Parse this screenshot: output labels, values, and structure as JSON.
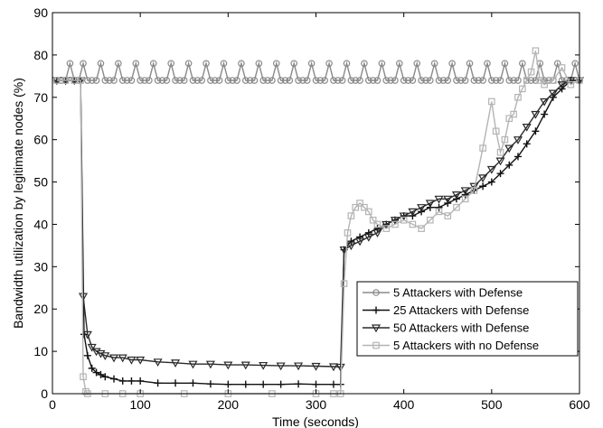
{
  "chart_data": {
    "type": "line",
    "title": "",
    "xlabel": "Time (seconds)",
    "ylabel": "Bandwidth utilization by legitimate nodes (%)",
    "xlim": [
      0,
      600
    ],
    "ylim": [
      0,
      90
    ],
    "xticks": [
      0,
      100,
      200,
      300,
      400,
      500,
      600
    ],
    "yticks": [
      0,
      10,
      20,
      30,
      40,
      50,
      60,
      70,
      80,
      90
    ],
    "grid": false,
    "legend_position": "lower-right",
    "series": [
      {
        "name": "5 Attackers with Defense",
        "color": "#8a8a8a",
        "marker": "circle",
        "x": [
          5,
          10,
          15,
          20,
          25,
          30
        ],
        "y": [
          74,
          74,
          74,
          78,
          74,
          74
        ],
        "pattern": {
          "x_start": 35,
          "x_end": 600,
          "step": 5,
          "values": [
            78,
            74,
            74,
            74
          ]
        }
      },
      {
        "name": "25 Attackers with Defense",
        "color": "#111111",
        "marker": "plus",
        "x": [
          5,
          15,
          25,
          32,
          36,
          40,
          45,
          50,
          55,
          60,
          70,
          80,
          90,
          100,
          120,
          140,
          160,
          180,
          200,
          220,
          240,
          260,
          280,
          300,
          320,
          328,
          332,
          340,
          350,
          360,
          370,
          380,
          390,
          400,
          410,
          420,
          430,
          440,
          450,
          460,
          470,
          480,
          490,
          500,
          510,
          520,
          530,
          540,
          550,
          560,
          570,
          580,
          590,
          600
        ],
        "y": [
          74,
          74,
          74,
          74,
          14,
          9,
          6,
          5,
          4.5,
          4,
          3.5,
          3,
          3,
          3,
          2.5,
          2.5,
          2.5,
          2.3,
          2.2,
          2.2,
          2.2,
          2.2,
          2.3,
          2.2,
          2.2,
          2.2,
          34,
          36,
          37,
          38,
          39,
          40,
          41,
          42,
          42,
          43,
          44,
          44,
          45,
          46,
          47,
          48,
          49,
          50,
          52,
          54,
          56,
          59,
          62,
          66,
          70,
          72,
          74,
          74
        ]
      },
      {
        "name": "50 Attackers with Defense",
        "color": "#2a2a2a",
        "marker": "triangle-down",
        "x": [
          5,
          15,
          25,
          32,
          35,
          40,
          45,
          50,
          55,
          60,
          70,
          80,
          90,
          100,
          120,
          140,
          160,
          180,
          200,
          220,
          240,
          260,
          280,
          300,
          320,
          328,
          332,
          340,
          350,
          360,
          370,
          380,
          390,
          400,
          410,
          420,
          430,
          440,
          450,
          460,
          470,
          480,
          490,
          500,
          510,
          520,
          530,
          540,
          550,
          560,
          570,
          580,
          590,
          600
        ],
        "y": [
          74,
          74,
          74,
          74,
          23,
          14,
          11,
          10,
          9.5,
          9,
          8.5,
          8.5,
          8,
          8,
          7.5,
          7.3,
          7,
          7,
          6.8,
          6.8,
          6.7,
          6.6,
          6.6,
          6.5,
          6.4,
          6.3,
          34,
          35,
          36,
          37,
          38,
          40,
          41,
          42,
          43,
          44,
          45,
          46,
          46,
          47,
          48,
          49,
          51,
          53,
          55,
          58,
          60,
          63,
          66,
          69,
          71,
          73,
          74,
          74
        ]
      },
      {
        "name": "5 Attackers with no Defense",
        "color": "#b4b4b4",
        "marker": "square",
        "x": [
          5,
          15,
          25,
          32,
          35,
          38,
          40,
          60,
          80,
          100,
          150,
          200,
          250,
          300,
          320,
          328,
          332,
          336,
          340,
          345,
          350,
          355,
          360,
          365,
          370,
          380,
          390,
          400,
          410,
          420,
          430,
          440,
          450,
          460,
          470,
          480,
          490,
          500,
          505,
          510,
          515,
          520,
          525,
          530,
          535,
          540,
          545,
          550,
          555,
          560,
          570,
          580,
          590,
          600
        ],
        "y": [
          74,
          74,
          74,
          74,
          4,
          0.5,
          0,
          0,
          0,
          0,
          0,
          0,
          0,
          0,
          0,
          0,
          26,
          38,
          42,
          44,
          45,
          44,
          43,
          41,
          40,
          39,
          40,
          41,
          40,
          39,
          41,
          43,
          42,
          44,
          46,
          48,
          58,
          69,
          62,
          57,
          60,
          65,
          66,
          70,
          72,
          74,
          76,
          81,
          74,
          73,
          74,
          77,
          73,
          74
        ]
      }
    ]
  }
}
